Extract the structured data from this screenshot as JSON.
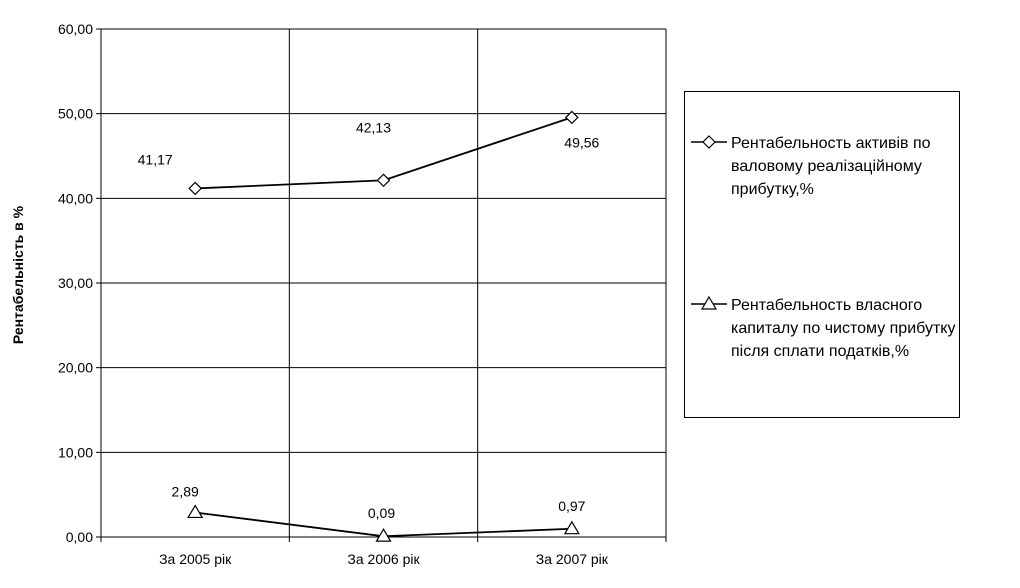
{
  "chart_data": {
    "type": "line",
    "categories": [
      "За 2005 рік",
      "За 2006 рік",
      "За 2007 рік"
    ],
    "ylabel": "Рентабельність в %",
    "ylim": [
      0,
      60
    ],
    "yticks": [
      "0,00",
      "10,00",
      "20,00",
      "30,00",
      "40,00",
      "50,00",
      "60,00"
    ],
    "grid": true,
    "legend_position": "right",
    "series": [
      {
        "name": "Рентабельность активів по валовому реалізаційному прибутку,%",
        "marker": "diamond",
        "values": [
          41.17,
          42.13,
          49.56
        ],
        "labels": [
          "41,17",
          "42,13",
          "49,56"
        ]
      },
      {
        "name": "Рентабельность власного капиталу  по чистому прибутку після сплати податків,%",
        "marker": "triangle",
        "values": [
          2.89,
          0.09,
          0.97
        ],
        "labels": [
          "2,89",
          "0,09",
          "0,97"
        ]
      }
    ]
  }
}
